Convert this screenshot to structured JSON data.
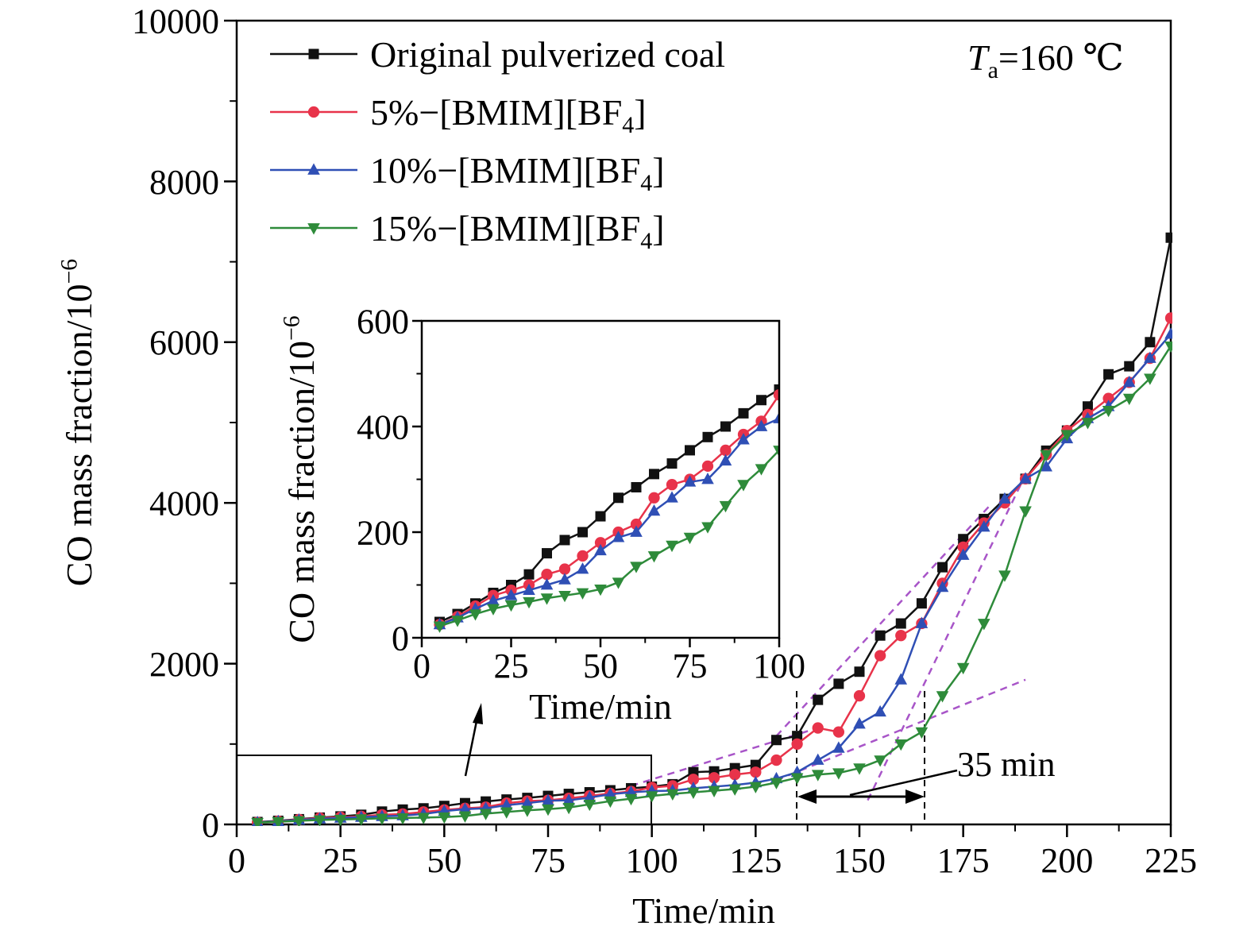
{
  "annotation": {
    "symbol": "T",
    "subscript": "a",
    "rest": "=160 ℃"
  },
  "interval_label": "35 min",
  "colors": {
    "black": "#111111",
    "red": "#e8334a",
    "blue": "#2f4fb5",
    "green": "#2e8b3a",
    "guide": "#a855c8"
  },
  "chart_data": [
    {
      "type": "line",
      "xlabel": "Time/min",
      "ylabel": "CO mass fraction/10",
      "ylabel_sup": "−6",
      "xlim": [
        0,
        225
      ],
      "ylim": [
        0,
        10000
      ],
      "xticks": [
        0,
        25,
        50,
        75,
        100,
        125,
        150,
        175,
        200,
        225
      ],
      "yticks": [
        0,
        2000,
        4000,
        6000,
        8000,
        10000
      ],
      "legend_position": "top-left",
      "x": [
        5,
        10,
        15,
        20,
        25,
        30,
        35,
        40,
        45,
        50,
        55,
        60,
        65,
        70,
        75,
        80,
        85,
        90,
        95,
        100,
        105,
        110,
        115,
        120,
        125,
        130,
        135,
        140,
        145,
        150,
        155,
        160,
        165,
        170,
        175,
        180,
        185,
        190,
        195,
        200,
        205,
        210,
        215,
        220,
        225
      ],
      "series": [
        {
          "name": "Original pulverized coal",
          "marker": "square",
          "color": "#111111",
          "values": [
            30,
            45,
            65,
            85,
            100,
            120,
            160,
            185,
            200,
            230,
            265,
            285,
            310,
            330,
            355,
            380,
            400,
            425,
            450,
            470,
            500,
            650,
            660,
            700,
            740,
            1050,
            1100,
            1550,
            1750,
            1900,
            2350,
            2500,
            2750,
            3200,
            3550,
            3800,
            4050,
            4300,
            4650,
            4900,
            5200,
            5600,
            5700,
            6000,
            7300
          ]
        },
        {
          "name": "5%−[BMIM][BF",
          "name_sub": "4",
          "name_end": "]",
          "marker": "circle",
          "color": "#e8334a",
          "values": [
            25,
            40,
            60,
            80,
            90,
            100,
            120,
            130,
            155,
            180,
            200,
            215,
            265,
            290,
            300,
            325,
            355,
            385,
            410,
            460,
            480,
            560,
            580,
            620,
            650,
            800,
            1000,
            1200,
            1150,
            1600,
            2100,
            2350,
            2500,
            3000,
            3450,
            3750,
            4000,
            4300,
            4600,
            4900,
            5100,
            5300,
            5500,
            5800,
            6300
          ]
        },
        {
          "name": "10%−[BMIM][BF",
          "name_sub": "4",
          "name_end": "]",
          "marker": "triangle-up",
          "color": "#2f4fb5",
          "values": [
            25,
            38,
            55,
            70,
            80,
            90,
            100,
            110,
            130,
            165,
            190,
            200,
            240,
            265,
            295,
            300,
            335,
            375,
            400,
            415,
            420,
            450,
            470,
            490,
            520,
            570,
            650,
            800,
            950,
            1250,
            1400,
            1800,
            2500,
            2950,
            3350,
            3700,
            4050,
            4300,
            4450,
            4800,
            5050,
            5200,
            5500,
            5800,
            6100
          ]
        },
        {
          "name": "15%−[BMIM][BF",
          "name_sub": "4",
          "name_end": "]",
          "marker": "triangle-down",
          "color": "#2e8b3a",
          "values": [
            22,
            33,
            45,
            55,
            62,
            68,
            75,
            80,
            85,
            92,
            105,
            135,
            155,
            175,
            190,
            210,
            250,
            290,
            320,
            355,
            380,
            400,
            420,
            440,
            470,
            520,
            580,
            620,
            640,
            700,
            800,
            1000,
            1150,
            1600,
            1950,
            2500,
            3100,
            3900,
            4600,
            4850,
            5000,
            5150,
            5300,
            5550,
            5950
          ]
        }
      ]
    },
    {
      "type": "line",
      "inset": true,
      "xlabel": "Time/min",
      "ylabel": "CO mass fraction/10",
      "ylabel_sup": "−6",
      "xlim": [
        0,
        100
      ],
      "ylim": [
        0,
        600
      ],
      "xticks": [
        0,
        25,
        50,
        75,
        100
      ],
      "yticks": [
        0,
        200,
        400,
        600
      ],
      "x": [
        5,
        10,
        15,
        20,
        25,
        30,
        35,
        40,
        45,
        50,
        55,
        60,
        65,
        70,
        75,
        80,
        85,
        90,
        95,
        100
      ],
      "series": [
        {
          "values": [
            30,
            45,
            65,
            85,
            100,
            120,
            160,
            185,
            200,
            230,
            265,
            285,
            310,
            330,
            355,
            380,
            400,
            425,
            450,
            470
          ]
        },
        {
          "values": [
            25,
            40,
            60,
            80,
            90,
            100,
            120,
            130,
            155,
            180,
            200,
            215,
            265,
            290,
            300,
            325,
            355,
            385,
            410,
            460
          ]
        },
        {
          "values": [
            25,
            38,
            55,
            70,
            80,
            90,
            100,
            110,
            130,
            165,
            190,
            200,
            240,
            265,
            295,
            300,
            335,
            375,
            400,
            415
          ]
        },
        {
          "values": [
            22,
            33,
            45,
            55,
            62,
            68,
            75,
            80,
            85,
            92,
            105,
            135,
            155,
            175,
            190,
            210,
            250,
            290,
            320,
            355
          ]
        }
      ]
    }
  ]
}
